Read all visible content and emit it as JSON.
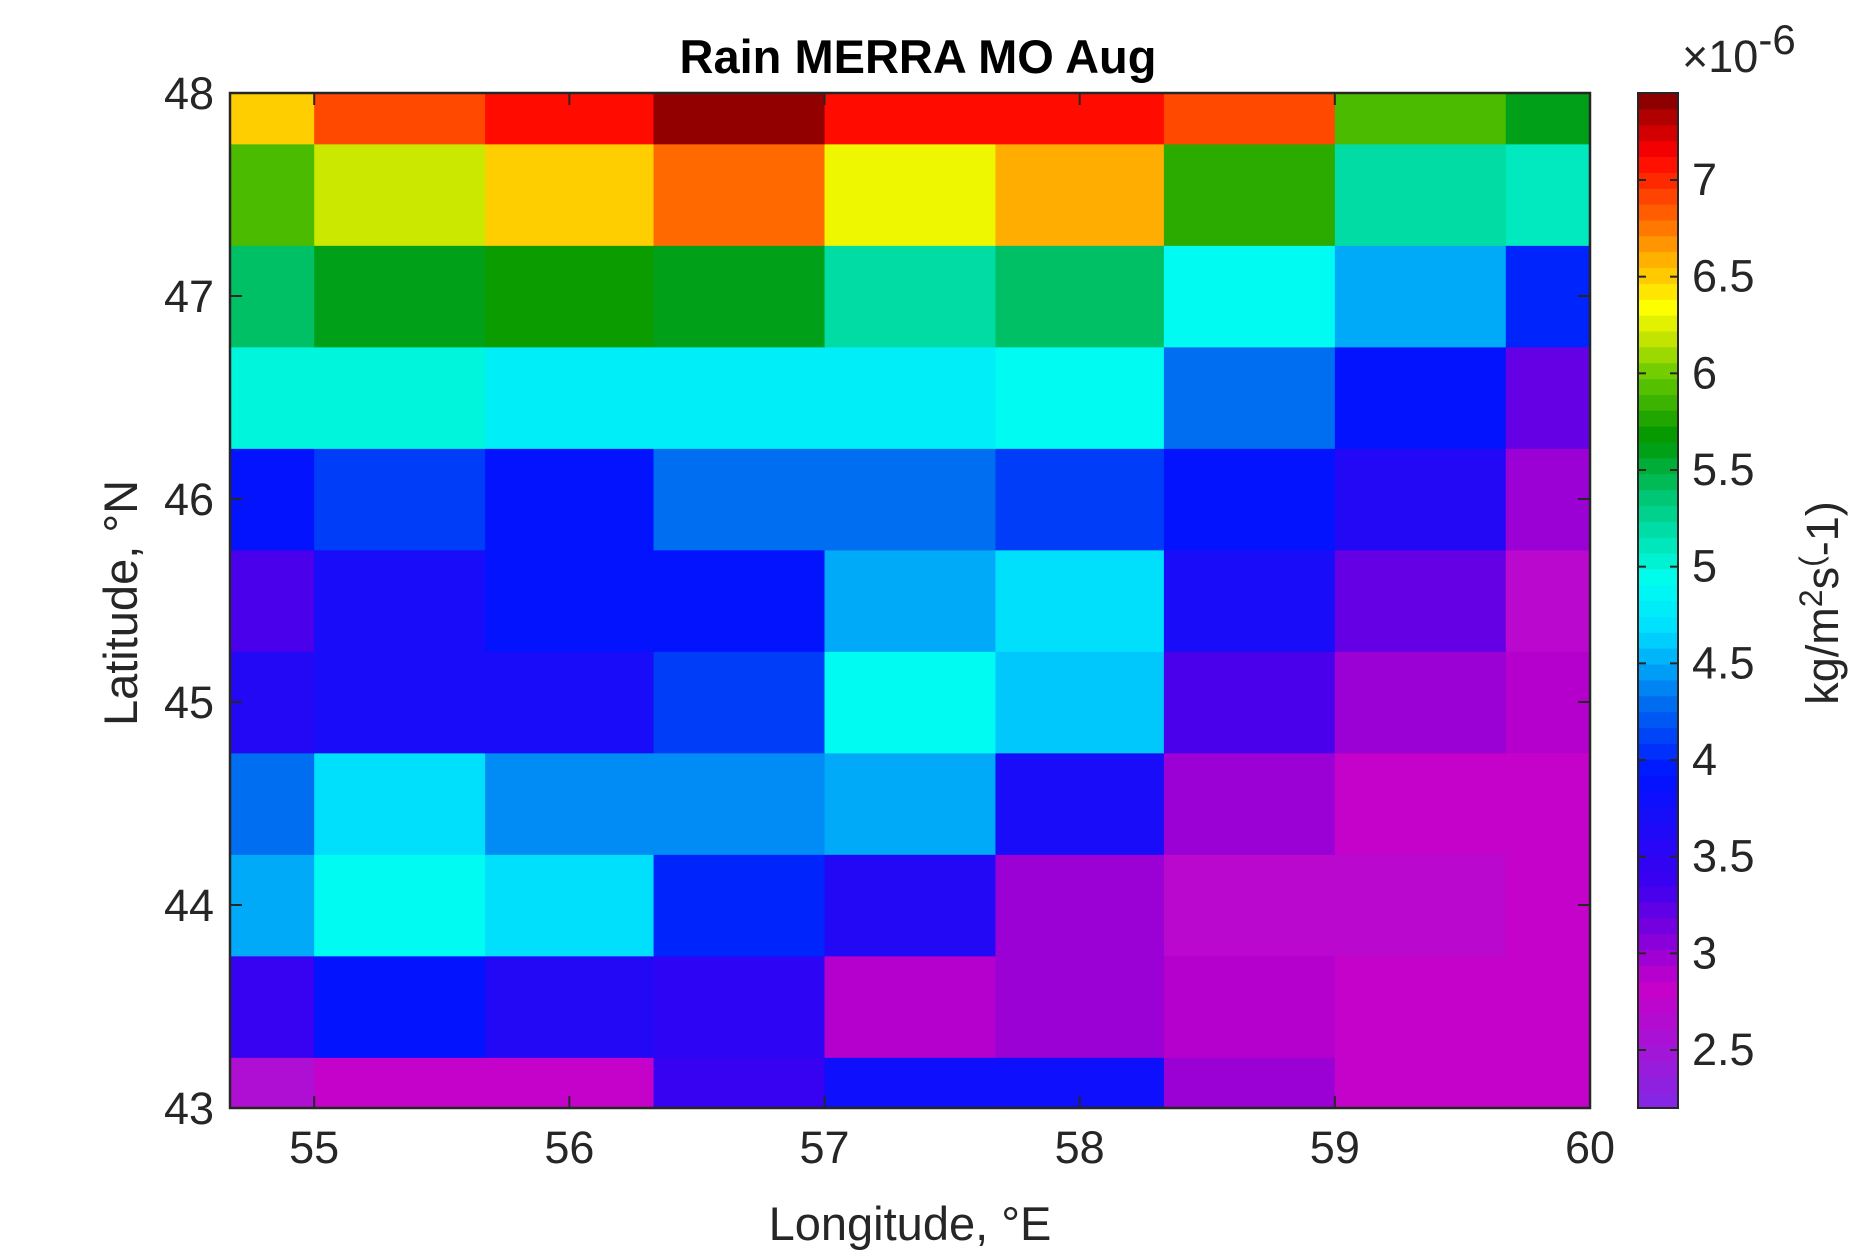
{
  "chart_data": {
    "type": "heatmap",
    "title": "Rain MERRA MO Aug",
    "xlabel": "Longitude, °E",
    "ylabel": "Latitude, °N",
    "colorbar": {
      "label_parts": [
        "kg/m",
        "2",
        "s",
        "(",
        "-1)"
      ],
      "exponent_prefix": "×10",
      "exponent": "-6",
      "clim": [
        2.2,
        7.45
      ],
      "ticks": [
        2.5,
        3,
        3.5,
        4,
        4.5,
        5,
        5.5,
        6,
        6.5,
        7
      ],
      "tick_labels": [
        "2.5",
        "3",
        "3.5",
        "4",
        "4.5",
        "5",
        "5.5",
        "6",
        "6.5",
        "7"
      ],
      "colormap": "jet-like (purple→blue→cyan→green→yellow→red→dark red)"
    },
    "xlim": [
      54.67,
      60.0
    ],
    "ylim": [
      43.0,
      48.0
    ],
    "x_ticks": [
      55,
      56,
      57,
      58,
      59,
      60
    ],
    "x_tick_labels": [
      "55",
      "56",
      "57",
      "58",
      "59",
      "60"
    ],
    "y_ticks": [
      43,
      44,
      45,
      46,
      47,
      48
    ],
    "y_tick_labels": [
      "43",
      "44",
      "45",
      "46",
      "47",
      "48"
    ],
    "x_edges": [
      54.67,
      55.0,
      55.67,
      56.33,
      57.0,
      57.67,
      58.33,
      59.0,
      59.67,
      60.0
    ],
    "y_edges": [
      43.0,
      43.25,
      43.75,
      44.25,
      44.75,
      45.25,
      45.75,
      46.25,
      46.75,
      47.25,
      47.75,
      48.0
    ],
    "values_unit": "x1e-6 kg/m^2 s^-1",
    "values": [
      [
        2.6,
        2.8,
        2.8,
        3.4,
        3.8,
        3.8,
        3.0,
        2.8,
        2.8
      ],
      [
        3.4,
        3.9,
        3.6,
        3.5,
        2.9,
        3.0,
        2.9,
        2.8,
        2.8
      ],
      [
        4.5,
        4.9,
        4.7,
        4.0,
        3.6,
        3.0,
        2.7,
        2.7,
        2.8
      ],
      [
        4.3,
        4.7,
        4.4,
        4.4,
        4.5,
        3.7,
        3.0,
        2.8,
        2.8
      ],
      [
        3.6,
        3.7,
        3.7,
        4.1,
        4.9,
        4.6,
        3.3,
        3.0,
        2.9
      ],
      [
        3.3,
        3.7,
        3.9,
        3.9,
        4.5,
        4.7,
        3.7,
        3.2,
        2.7
      ],
      [
        3.9,
        4.1,
        3.9,
        4.3,
        4.3,
        4.1,
        3.9,
        3.6,
        3.0
      ],
      [
        5.0,
        5.0,
        4.8,
        4.8,
        4.8,
        4.9,
        4.3,
        3.9,
        3.2
      ],
      [
        5.4,
        5.6,
        5.7,
        5.6,
        5.2,
        5.4,
        4.9,
        4.5,
        4.0
      ],
      [
        5.9,
        6.2,
        6.5,
        6.8,
        6.3,
        6.6,
        5.8,
        5.2,
        5.1
      ],
      [
        6.5,
        6.9,
        7.1,
        7.4,
        7.1,
        7.1,
        6.9,
        5.9,
        5.6
      ]
    ]
  }
}
